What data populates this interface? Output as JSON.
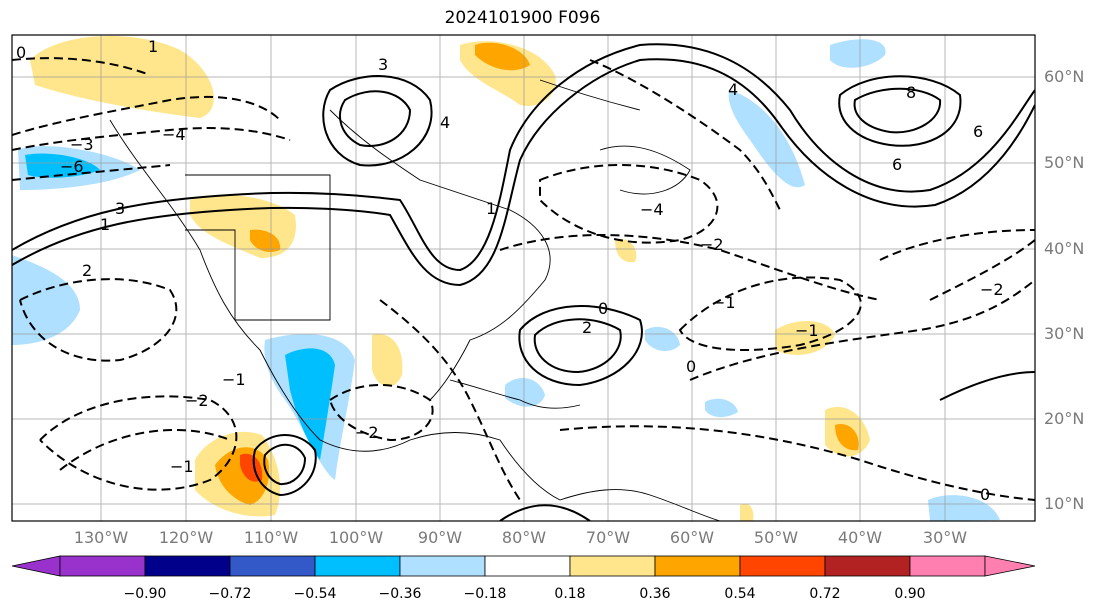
{
  "title": "2024101900 F096",
  "lat_labels": [
    "60°N",
    "50°N",
    "40°N",
    "30°N",
    "20°N",
    "10°N"
  ],
  "lon_labels": [
    "130°W",
    "120°W",
    "110°W",
    "100°W",
    "90°W",
    "80°W",
    "70°W",
    "60°W",
    "50°W",
    "40°W",
    "30°W"
  ],
  "colorbar": {
    "ticks": [
      "−0.90",
      "−0.72",
      "−0.54",
      "−0.36",
      "−0.18",
      "0.18",
      "0.36",
      "0.54",
      "0.72",
      "0.90"
    ],
    "colors": [
      "#9932cc",
      "#00008b",
      "#3358c8",
      "#00bfff",
      "#b0e0ff",
      "#ffffff",
      "#ffe68c",
      "#ffa500",
      "#ff4500",
      "#b22222",
      "#ff80b0"
    ]
  },
  "contour_labels": [
    "0",
    "0",
    "0",
    "0",
    "2",
    "1",
    "3",
    "3",
    "4",
    "4",
    "8",
    "6",
    "−2",
    "−2",
    "−1",
    "−1",
    "−1",
    "2",
    "−4",
    "−4",
    "−2",
    "−2",
    "−1",
    "1",
    "1",
    "6",
    "−6",
    "−3"
  ]
}
